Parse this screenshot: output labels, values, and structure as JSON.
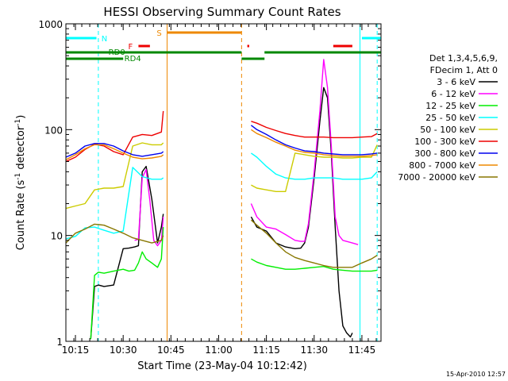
{
  "chart_data": {
    "type": "line",
    "title": "HESSI Observing Summary Count Rates",
    "xlabel": "Start Time (23-May-04 10:12:42)",
    "ylabel": "Count Rate (s⁻¹ detector⁻¹)",
    "ylabel_parts": [
      "Count Rate (s",
      "-1",
      " detector",
      "-1",
      ")"
    ],
    "yscale": "log",
    "xlim": [
      10.2,
      11.85
    ],
    "ylim": [
      1,
      1000
    ],
    "xtick_values": [
      10.25,
      10.5,
      10.75,
      11.0,
      11.25,
      11.5,
      11.75
    ],
    "xtick_labels": [
      "10:15",
      "10:30",
      "10:45",
      "11:00",
      "11:15",
      "11:30",
      "11:45"
    ],
    "ytick_values": [
      1,
      10,
      100,
      1000
    ],
    "ytick_labels": [
      "1",
      "10",
      "100",
      "1000"
    ],
    "grid": false,
    "legend": {
      "placement": "right",
      "header": [
        "Det 1,3,4,5,6,9,",
        "FDecim 1, Att 0"
      ],
      "entries": [
        {
          "label": "3 - 6 keV",
          "color": "#000000"
        },
        {
          "label": "6 - 12 keV",
          "color": "#ff00ff"
        },
        {
          "label": "12 - 25 keV",
          "color": "#00ee00"
        },
        {
          "label": "25 - 50 keV",
          "color": "#00ffff"
        },
        {
          "label": "50 - 100 keV",
          "color": "#cccc00"
        },
        {
          "label": "100 - 300 keV",
          "color": "#ee0000"
        },
        {
          "label": "300 - 800 keV",
          "color": "#0000ee"
        },
        {
          "label": "800 - 7000 keV",
          "color": "#ee8800"
        },
        {
          "label": "7000 - 20000 keV",
          "color": "#887700"
        }
      ]
    },
    "series": [
      {
        "name": "3 - 6 keV",
        "color": "#000000",
        "segments": [
          {
            "x": [
              10.33,
              10.35,
              10.37,
              10.4,
              10.45,
              10.5,
              10.53,
              10.56,
              10.58,
              10.6,
              10.62,
              10.65,
              10.68,
              10.7,
              10.71
            ],
            "y": [
              1.05,
              3.3,
              3.4,
              3.3,
              3.4,
              7.5,
              7.6,
              7.8,
              8.0,
              40,
              45,
              22,
              8.5,
              12,
              16
            ]
          },
          {
            "x": [
              11.17,
              11.2,
              11.25,
              11.3,
              11.35,
              11.4,
              11.43,
              11.45,
              11.47,
              11.5,
              11.53,
              11.55,
              11.57,
              11.59,
              11.61,
              11.63,
              11.65,
              11.67,
              11.69,
              11.7
            ],
            "y": [
              15,
              12,
              11,
              8.5,
              7.8,
              7.5,
              7.6,
              8.5,
              12,
              35,
              120,
              250,
              200,
              60,
              12,
              3.0,
              1.4,
              1.2,
              1.1,
              1.2
            ]
          }
        ]
      },
      {
        "name": "6 - 12 keV",
        "color": "#ff00ff",
        "segments": [
          {
            "x": [
              10.56,
              10.58,
              10.6,
              10.62,
              10.64,
              10.66,
              10.68,
              10.7,
              10.71
            ],
            "y": [
              9,
              9.2,
              35,
              42,
              21,
              9,
              8,
              9,
              15
            ]
          },
          {
            "x": [
              11.17,
              11.2,
              11.25,
              11.3,
              11.35,
              11.4,
              11.43,
              11.45,
              11.47,
              11.5,
              11.53,
              11.55,
              11.57,
              11.59,
              11.61,
              11.63,
              11.65,
              11.7,
              11.73
            ],
            "y": [
              20,
              15,
              12,
              11.5,
              10.2,
              9,
              8.8,
              8.8,
              13,
              40,
              150,
              460,
              250,
              70,
              15,
              10,
              9,
              8.5,
              8.2
            ]
          }
        ]
      },
      {
        "name": "12 - 25 keV",
        "color": "#00ee00",
        "segments": [
          {
            "x": [
              10.33,
              10.35,
              10.37,
              10.4,
              10.45,
              10.5,
              10.53,
              10.56,
              10.58,
              10.6,
              10.62,
              10.65,
              10.68,
              10.7,
              10.71
            ],
            "y": [
              1.05,
              4.2,
              4.5,
              4.4,
              4.6,
              4.8,
              4.6,
              4.7,
              5.5,
              7.0,
              6.0,
              5.5,
              5.0,
              6,
              12
            ]
          },
          {
            "x": [
              11.17,
              11.2,
              11.25,
              11.3,
              11.35,
              11.4,
              11.45,
              11.5,
              11.55,
              11.6,
              11.65,
              11.7,
              11.75,
              11.8,
              11.83
            ],
            "y": [
              6.0,
              5.6,
              5.2,
              5.0,
              4.8,
              4.8,
              4.9,
              5.0,
              5.1,
              4.8,
              4.7,
              4.6,
              4.6,
              4.6,
              4.7
            ]
          }
        ]
      },
      {
        "name": "25 - 50 keV",
        "color": "#00ffff",
        "segments": [
          {
            "x": [
              10.2,
              10.25,
              10.3,
              10.35,
              10.4,
              10.45,
              10.5,
              10.55,
              10.6,
              10.65,
              10.7,
              10.71
            ],
            "y": [
              9.3,
              9.8,
              11.8,
              12.0,
              11.2,
              10.5,
              11.0,
              44,
              36,
              34,
              34,
              35
            ]
          },
          {
            "x": [
              11.17,
              11.2,
              11.25,
              11.3,
              11.35,
              11.4,
              11.45,
              11.5,
              11.55,
              11.6,
              11.65,
              11.7,
              11.75,
              11.8,
              11.83
            ],
            "y": [
              60,
              55,
              45,
              38,
              35,
              34,
              34,
              35,
              35,
              35,
              34,
              34,
              34,
              35,
              40
            ]
          }
        ]
      },
      {
        "name": "50 - 100 keV",
        "color": "#cccc00",
        "segments": [
          {
            "x": [
              10.2,
              10.25,
              10.3,
              10.35,
              10.4,
              10.45,
              10.5,
              10.55,
              10.6,
              10.65,
              10.7,
              10.71
            ],
            "y": [
              18,
              19,
              20,
              27,
              28,
              28,
              29,
              70,
              75,
              72,
              72,
              75
            ]
          },
          {
            "x": [
              11.17,
              11.2,
              11.25,
              11.3,
              11.35,
              11.4,
              11.45,
              11.5,
              11.55,
              11.6,
              11.65,
              11.7,
              11.75,
              11.8,
              11.83
            ],
            "y": [
              30,
              28,
              27,
              26,
              26,
              60,
              58,
              56,
              55,
              55,
              54,
              54,
              55,
              55,
              72
            ]
          }
        ]
      },
      {
        "name": "100 - 300 keV",
        "color": "#ee0000",
        "segments": [
          {
            "x": [
              10.2,
              10.25,
              10.3,
              10.35,
              10.4,
              10.45,
              10.5,
              10.55,
              10.6,
              10.65,
              10.7,
              10.71
            ],
            "y": [
              50,
              55,
              65,
              73,
              70,
              62,
              58,
              85,
              90,
              88,
              95,
              150
            ]
          },
          {
            "x": [
              11.17,
              11.2,
              11.25,
              11.3,
              11.35,
              11.4,
              11.45,
              11.5,
              11.55,
              11.6,
              11.65,
              11.7,
              11.75,
              11.8,
              11.83
            ],
            "y": [
              120,
              115,
              105,
              98,
              92,
              88,
              85,
              85,
              85,
              84,
              84,
              84,
              85,
              86,
              92
            ]
          }
        ]
      },
      {
        "name": "300 - 800 keV",
        "color": "#0000ee",
        "segments": [
          {
            "x": [
              10.2,
              10.25,
              10.3,
              10.35,
              10.4,
              10.45,
              10.5,
              10.55,
              10.6,
              10.65,
              10.7,
              10.71
            ],
            "y": [
              55,
              60,
              70,
              74,
              74,
              70,
              63,
              58,
              56,
              58,
              60,
              62
            ]
          },
          {
            "x": [
              11.17,
              11.2,
              11.25,
              11.3,
              11.35,
              11.4,
              11.45,
              11.5,
              11.55,
              11.6,
              11.65,
              11.7,
              11.75,
              11.8,
              11.83
            ],
            "y": [
              110,
              100,
              90,
              80,
              72,
              67,
              63,
              62,
              60,
              59,
              58,
              58,
              58,
              59,
              60
            ]
          }
        ]
      },
      {
        "name": "800 - 7000 keV",
        "color": "#ee8800",
        "segments": [
          {
            "x": [
              10.2,
              10.25,
              10.3,
              10.35,
              10.4,
              10.45,
              10.5,
              10.55,
              10.6,
              10.65,
              10.7,
              10.71
            ],
            "y": [
              52,
              58,
              66,
              72,
              72,
              66,
              60,
              55,
              53,
              54,
              56,
              58
            ]
          },
          {
            "x": [
              11.17,
              11.2,
              11.25,
              11.3,
              11.35,
              11.4,
              11.45,
              11.5,
              11.55,
              11.6,
              11.65,
              11.7,
              11.75,
              11.8,
              11.83
            ],
            "y": [
              100,
              92,
              84,
              76,
              70,
              64,
              61,
              60,
              58,
              57,
              56,
              56,
              56,
              57,
              58
            ]
          }
        ]
      },
      {
        "name": "7000 - 20000 keV",
        "color": "#887700",
        "segments": [
          {
            "x": [
              10.2,
              10.25,
              10.3,
              10.35,
              10.4,
              10.45,
              10.5,
              10.55,
              10.6,
              10.65,
              10.7,
              10.71
            ],
            "y": [
              8.5,
              10.5,
              11.5,
              12.8,
              12.5,
              11.5,
              10.5,
              9.5,
              9.0,
              8.5,
              9.0,
              10
            ]
          },
          {
            "x": [
              11.17,
              11.2,
              11.25,
              11.3,
              11.35,
              11.4,
              11.45,
              11.5,
              11.55,
              11.6,
              11.65,
              11.7,
              11.75,
              11.8,
              11.83
            ],
            "y": [
              14,
              12.5,
              10.5,
              8.5,
              7.0,
              6.2,
              5.8,
              5.5,
              5.2,
              5.0,
              5.0,
              5.0,
              5.5,
              6.0,
              6.5
            ]
          }
        ]
      }
    ],
    "vertical_markers": [
      {
        "x": 10.37,
        "color": "#00ffff",
        "style": "dashed"
      },
      {
        "x": 10.73,
        "color": "#ee8800",
        "style": "solid"
      },
      {
        "x": 11.12,
        "color": "#ee8800",
        "style": "dashed"
      },
      {
        "x": 11.74,
        "color": "#00ffff",
        "style": "solid"
      },
      {
        "x": 11.83,
        "color": "#00ffff",
        "style": "dashed"
      }
    ],
    "flag_bars": [
      {
        "label": "N",
        "color": "#00ffff",
        "segments": [
          [
            10.2,
            10.36
          ],
          [
            11.75,
            11.85
          ]
        ]
      },
      {
        "label": "S",
        "color": "#ee8800",
        "segments": [
          [
            10.73,
            11.12
          ]
        ]
      },
      {
        "label": "F",
        "color": "#ee0000",
        "segments": [
          [
            10.58,
            10.64
          ],
          [
            11.15,
            11.16
          ],
          [
            11.6,
            11.7
          ]
        ]
      },
      {
        "label": "RD0",
        "color": "#008800",
        "segments": [
          [
            10.2,
            11.12
          ],
          [
            11.24,
            11.85
          ]
        ]
      },
      {
        "label": "RD4",
        "color": "#008800",
        "segments": [
          [
            10.2,
            10.5
          ],
          [
            11.12,
            11.24
          ]
        ]
      }
    ],
    "footer_date": "15-Apr-2010 12:57"
  }
}
